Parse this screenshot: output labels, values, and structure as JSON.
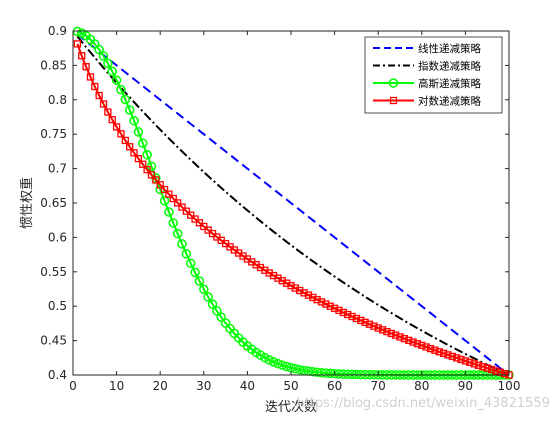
{
  "chart_data": {
    "type": "line",
    "title": "",
    "xlabel": "迭代次数",
    "ylabel": "惯性权重",
    "xlim": [
      0,
      100
    ],
    "ylim": [
      0.4,
      0.9
    ],
    "xticks": [
      0,
      10,
      20,
      30,
      40,
      50,
      60,
      70,
      80,
      90,
      100
    ],
    "yticks": [
      0.4,
      0.45,
      0.5,
      0.55,
      0.6,
      0.65,
      0.7,
      0.75,
      0.8,
      0.85,
      0.9
    ],
    "grid": false,
    "legend_position": "top-right",
    "iterations": 100,
    "w_max": 0.9,
    "w_min": 0.4,
    "series": [
      {
        "name": "线性递减策略",
        "color": "#0000FF",
        "style": "dashed",
        "marker": "none"
      },
      {
        "name": "指数递减策略",
        "color": "#000000",
        "style": "dashdot",
        "marker": "none"
      },
      {
        "name": "高斯递减策略",
        "color": "#00FF00",
        "style": "solid",
        "marker": "circle"
      },
      {
        "name": "对数递减策略",
        "color": "#FF0000",
        "style": "solid",
        "marker": "square"
      }
    ]
  },
  "watermark": "https://blog.csdn.net/weixin_43821559"
}
